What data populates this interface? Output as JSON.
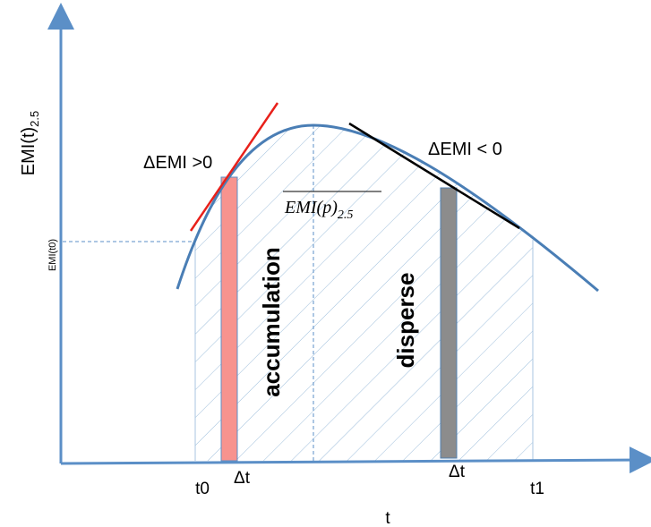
{
  "axes": {
    "y_label": {
      "text": "EMI(t)",
      "subscript": "2.5"
    },
    "x_label": "t",
    "y_marker": "EMI(t0)"
  },
  "annotations": {
    "increase": "ΔEMI  >0",
    "decrease": "ΔEMI < 0",
    "mean": {
      "text": "EMI(p)",
      "subscript": "2.5"
    },
    "accumulation": "accumulation",
    "disperse": "disperse"
  },
  "x_ticks": {
    "t0": "t0",
    "dt_left": "Δt",
    "dt_right": "Δt",
    "t1": "t1"
  }
}
